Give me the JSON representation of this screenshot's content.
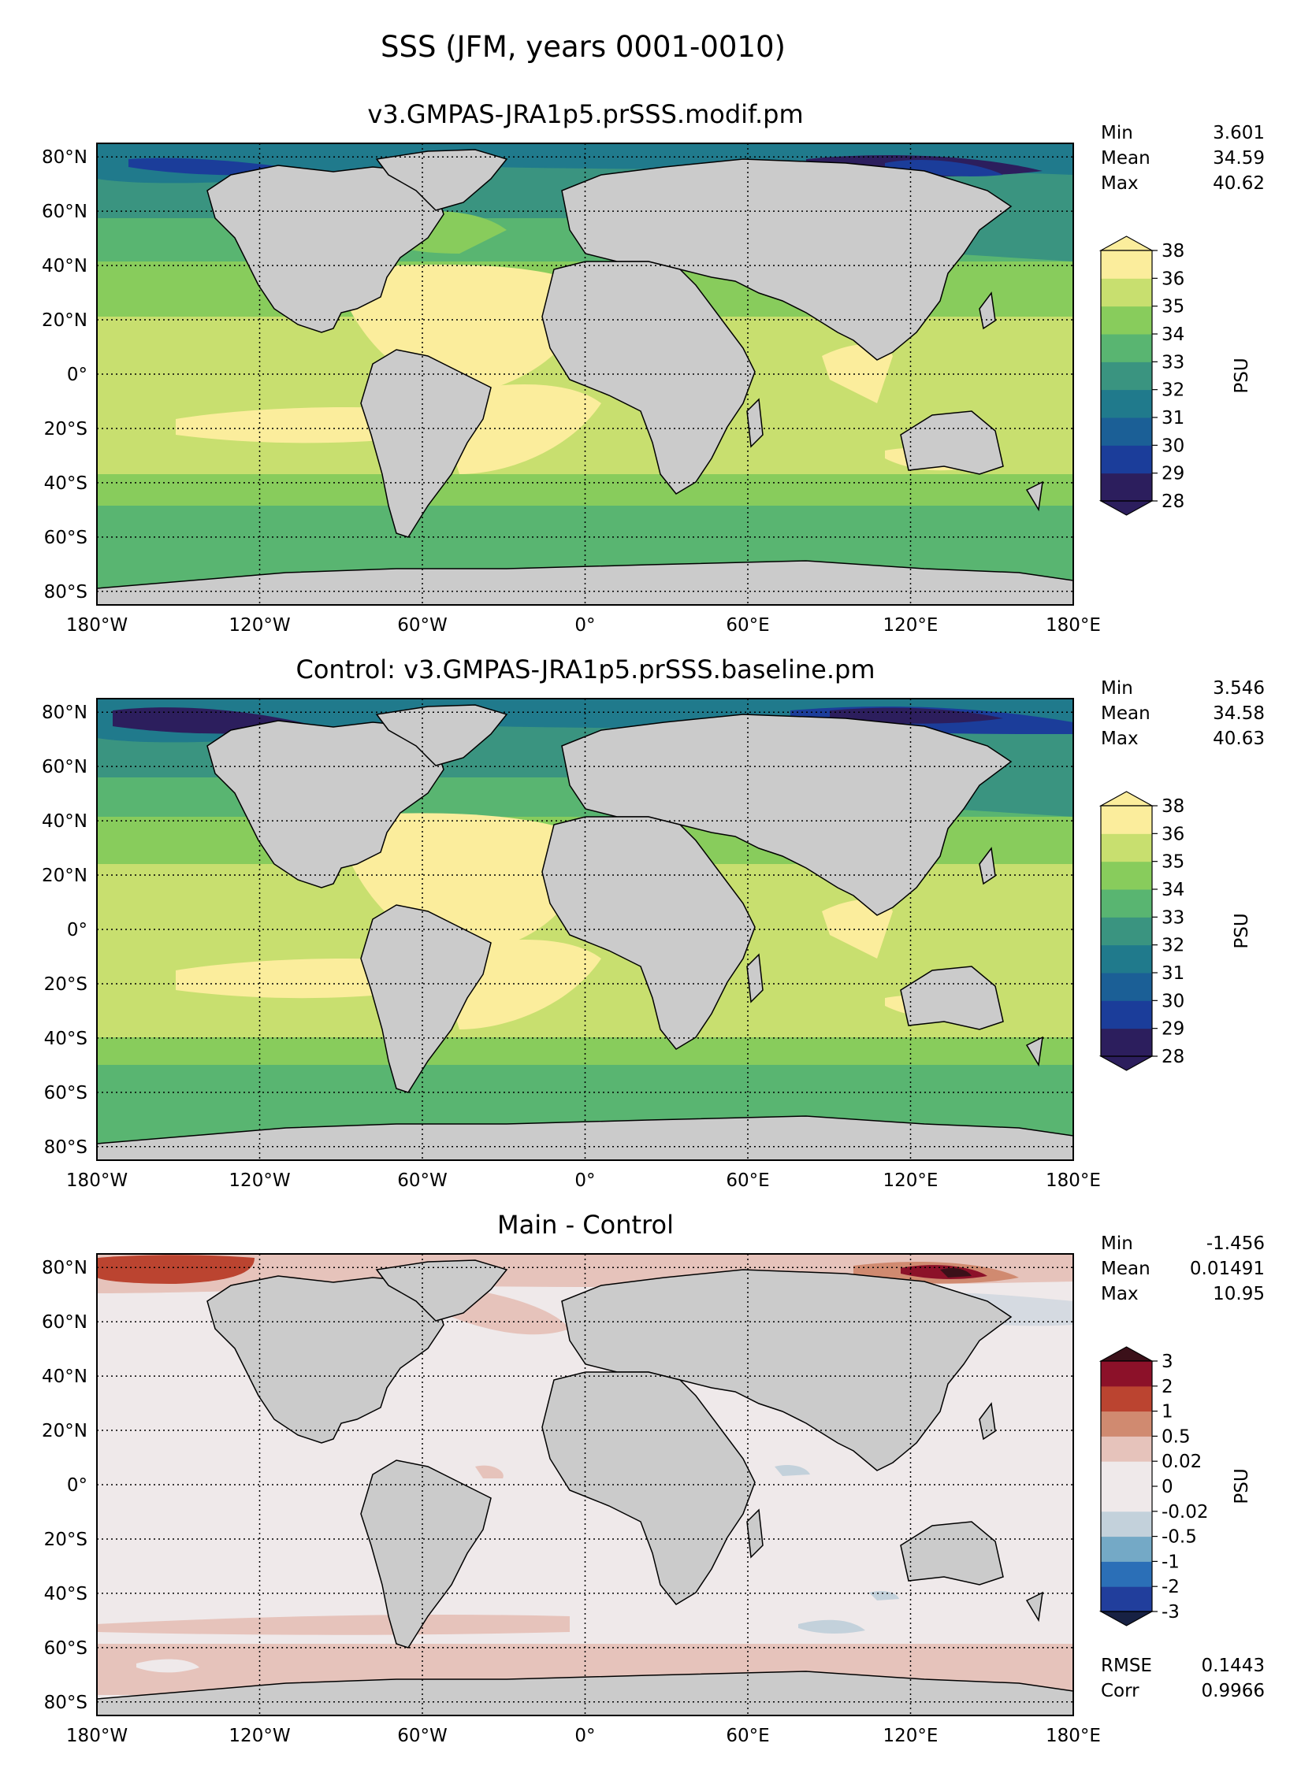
{
  "figure_title": "SSS (JFM, years 0001-0010)",
  "lon_ticks": [
    "180°W",
    "120°W",
    "60°W",
    "0°",
    "60°E",
    "120°E",
    "180°E"
  ],
  "lat_ticks": [
    "80°N",
    "60°N",
    "40°N",
    "20°N",
    "0°",
    "20°S",
    "40°S",
    "60°S",
    "80°S"
  ],
  "colors": {
    "land": "#cbcbcb",
    "coast": "#000000"
  },
  "panels": [
    {
      "id": "main",
      "title": "v3.GMPAS-JRA1p5.prSSS.modif.pm",
      "stats": [
        {
          "label": "Min",
          "value": "3.601"
        },
        {
          "label": "Mean",
          "value": "34.59"
        },
        {
          "label": "Max",
          "value": "40.62"
        }
      ],
      "colorbar": {
        "unit": "PSU",
        "labels": [
          "28",
          "29",
          "30",
          "31",
          "32",
          "33",
          "34",
          "35",
          "36",
          "38"
        ],
        "colors": [
          "#2c1e5d",
          "#1b3d9a",
          "#1b5f96",
          "#207a8c",
          "#3a9480",
          "#59b571",
          "#88cc5c",
          "#c8df6f",
          "#fbed9c"
        ],
        "under": "#2c1e5d",
        "over": "#fbed9c"
      }
    },
    {
      "id": "control",
      "title": "Control: v3.GMPAS-JRA1p5.prSSS.baseline.pm",
      "stats": [
        {
          "label": "Min",
          "value": "3.546"
        },
        {
          "label": "Mean",
          "value": "34.58"
        },
        {
          "label": "Max",
          "value": "40.63"
        }
      ],
      "colorbar": {
        "unit": "PSU",
        "labels": [
          "28",
          "29",
          "30",
          "31",
          "32",
          "33",
          "34",
          "35",
          "36",
          "38"
        ],
        "colors": [
          "#2c1e5d",
          "#1b3d9a",
          "#1b5f96",
          "#207a8c",
          "#3a9480",
          "#59b571",
          "#88cc5c",
          "#c8df6f",
          "#fbed9c"
        ],
        "under": "#2c1e5d",
        "over": "#fbed9c"
      }
    },
    {
      "id": "diff",
      "title": "Main - Control",
      "stats": [
        {
          "label": "Min",
          "value": "-1.456"
        },
        {
          "label": "Mean",
          "value": "0.01491"
        },
        {
          "label": "Max",
          "value": "10.95"
        }
      ],
      "extra_stats": [
        {
          "label": "RMSE",
          "value": "0.1443"
        },
        {
          "label": "Corr",
          "value": "0.9966"
        }
      ],
      "colorbar": {
        "unit": "PSU",
        "labels": [
          "-3",
          "-2",
          "-1",
          "-0.5",
          "-0.02",
          "0",
          "0.02",
          "0.5",
          "1",
          "2",
          "3"
        ],
        "colors": [
          "#213e9c",
          "#2b6fb7",
          "#74a9c6",
          "#c3d1db",
          "#efe9ea",
          "#efe9ea",
          "#e6c3bb",
          "#d08a70",
          "#bb4430",
          "#8c1129"
        ],
        "under": "#172143",
        "over": "#3b1019"
      }
    }
  ]
}
